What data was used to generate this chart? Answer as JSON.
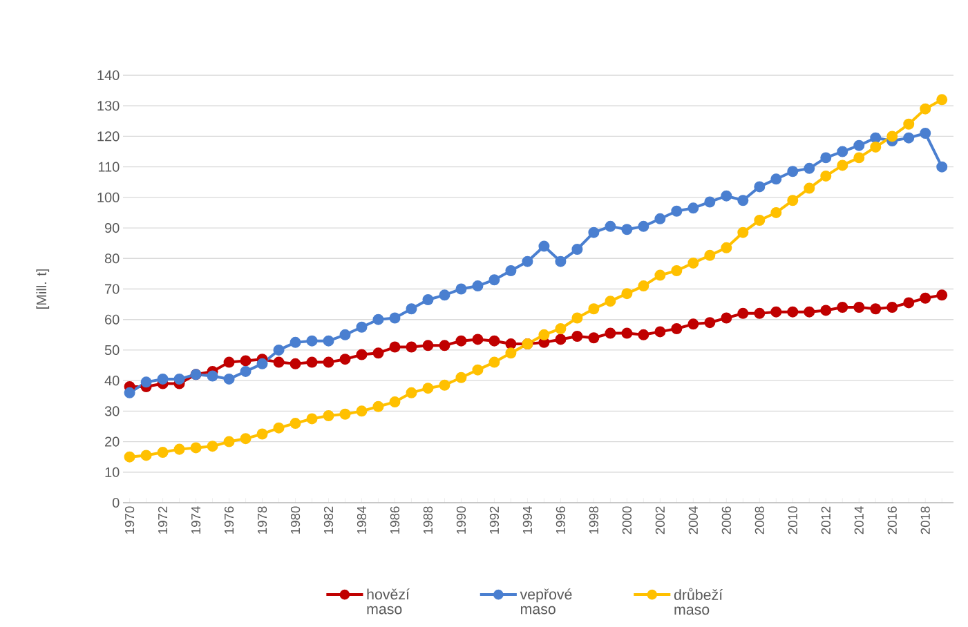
{
  "chart_data": {
    "type": "line",
    "ylabel": "[Mill. t]",
    "categories": [
      "1970",
      null,
      "1972",
      null,
      "1974",
      null,
      "1976",
      null,
      "1978",
      null,
      "1980",
      null,
      "1982",
      null,
      "1984",
      null,
      "1986",
      null,
      "1988",
      null,
      "1990",
      null,
      "1992",
      null,
      "1994",
      null,
      "1996",
      null,
      "1998",
      null,
      "2000",
      null,
      "2002",
      null,
      "2004",
      null,
      "2006",
      null,
      "2008",
      null,
      "2010",
      null,
      "2012",
      null,
      "2014",
      null,
      "2016",
      null,
      "2018",
      null
    ],
    "ylim": [
      0,
      140
    ],
    "yticks": [
      0,
      10,
      20,
      30,
      40,
      50,
      60,
      70,
      80,
      90,
      100,
      110,
      120,
      130,
      140
    ],
    "grid": "y",
    "legend": "bottom",
    "marker": "circle",
    "line_style": "solid",
    "series": [
      {
        "name": "hovězí maso",
        "color": "#c00000",
        "values": [
          38,
          38,
          39,
          39,
          42,
          43,
          46,
          46.5,
          47,
          46,
          45.5,
          46,
          46,
          47,
          48.5,
          49,
          51,
          51,
          51.5,
          51.5,
          53,
          53.5,
          53,
          52,
          52,
          52.5,
          53.5,
          54.5,
          54,
          55.5,
          55.5,
          55,
          56,
          57,
          58.5,
          59,
          60.5,
          62,
          62,
          62.5,
          62.5,
          62.5,
          63,
          64,
          64,
          63.5,
          64,
          65.5,
          67,
          68
        ]
      },
      {
        "name": "vepřové maso",
        "color": "#4a7fd0",
        "values": [
          36,
          39.5,
          40.5,
          40.5,
          42,
          41.5,
          40.5,
          43,
          45.5,
          50,
          52.5,
          53,
          53,
          55,
          57.5,
          60,
          60.5,
          63.5,
          66.5,
          68,
          70,
          71,
          73,
          76,
          79,
          84,
          79,
          83,
          88.5,
          90.5,
          89.5,
          90.5,
          93,
          95.5,
          96.5,
          98.5,
          100.5,
          99,
          103.5,
          106,
          108.5,
          109.5,
          113,
          115,
          117,
          119.5,
          118.5,
          119.5,
          121,
          110
        ]
      },
      {
        "name": "drůbeží maso",
        "color": "#ffc000",
        "values": [
          15,
          15.5,
          16.5,
          17.5,
          18,
          18.5,
          20,
          21,
          22.5,
          24.5,
          26,
          27.5,
          28.5,
          29,
          30,
          31.5,
          33,
          36,
          37.5,
          38.5,
          41,
          43.5,
          46,
          49,
          52,
          55,
          57,
          60.5,
          63.5,
          66,
          68.5,
          71,
          74.5,
          76,
          78.5,
          81,
          83.5,
          88.5,
          92.5,
          95,
          99,
          103,
          107,
          110.5,
          113,
          116.5,
          120,
          124,
          129,
          132
        ]
      }
    ]
  }
}
